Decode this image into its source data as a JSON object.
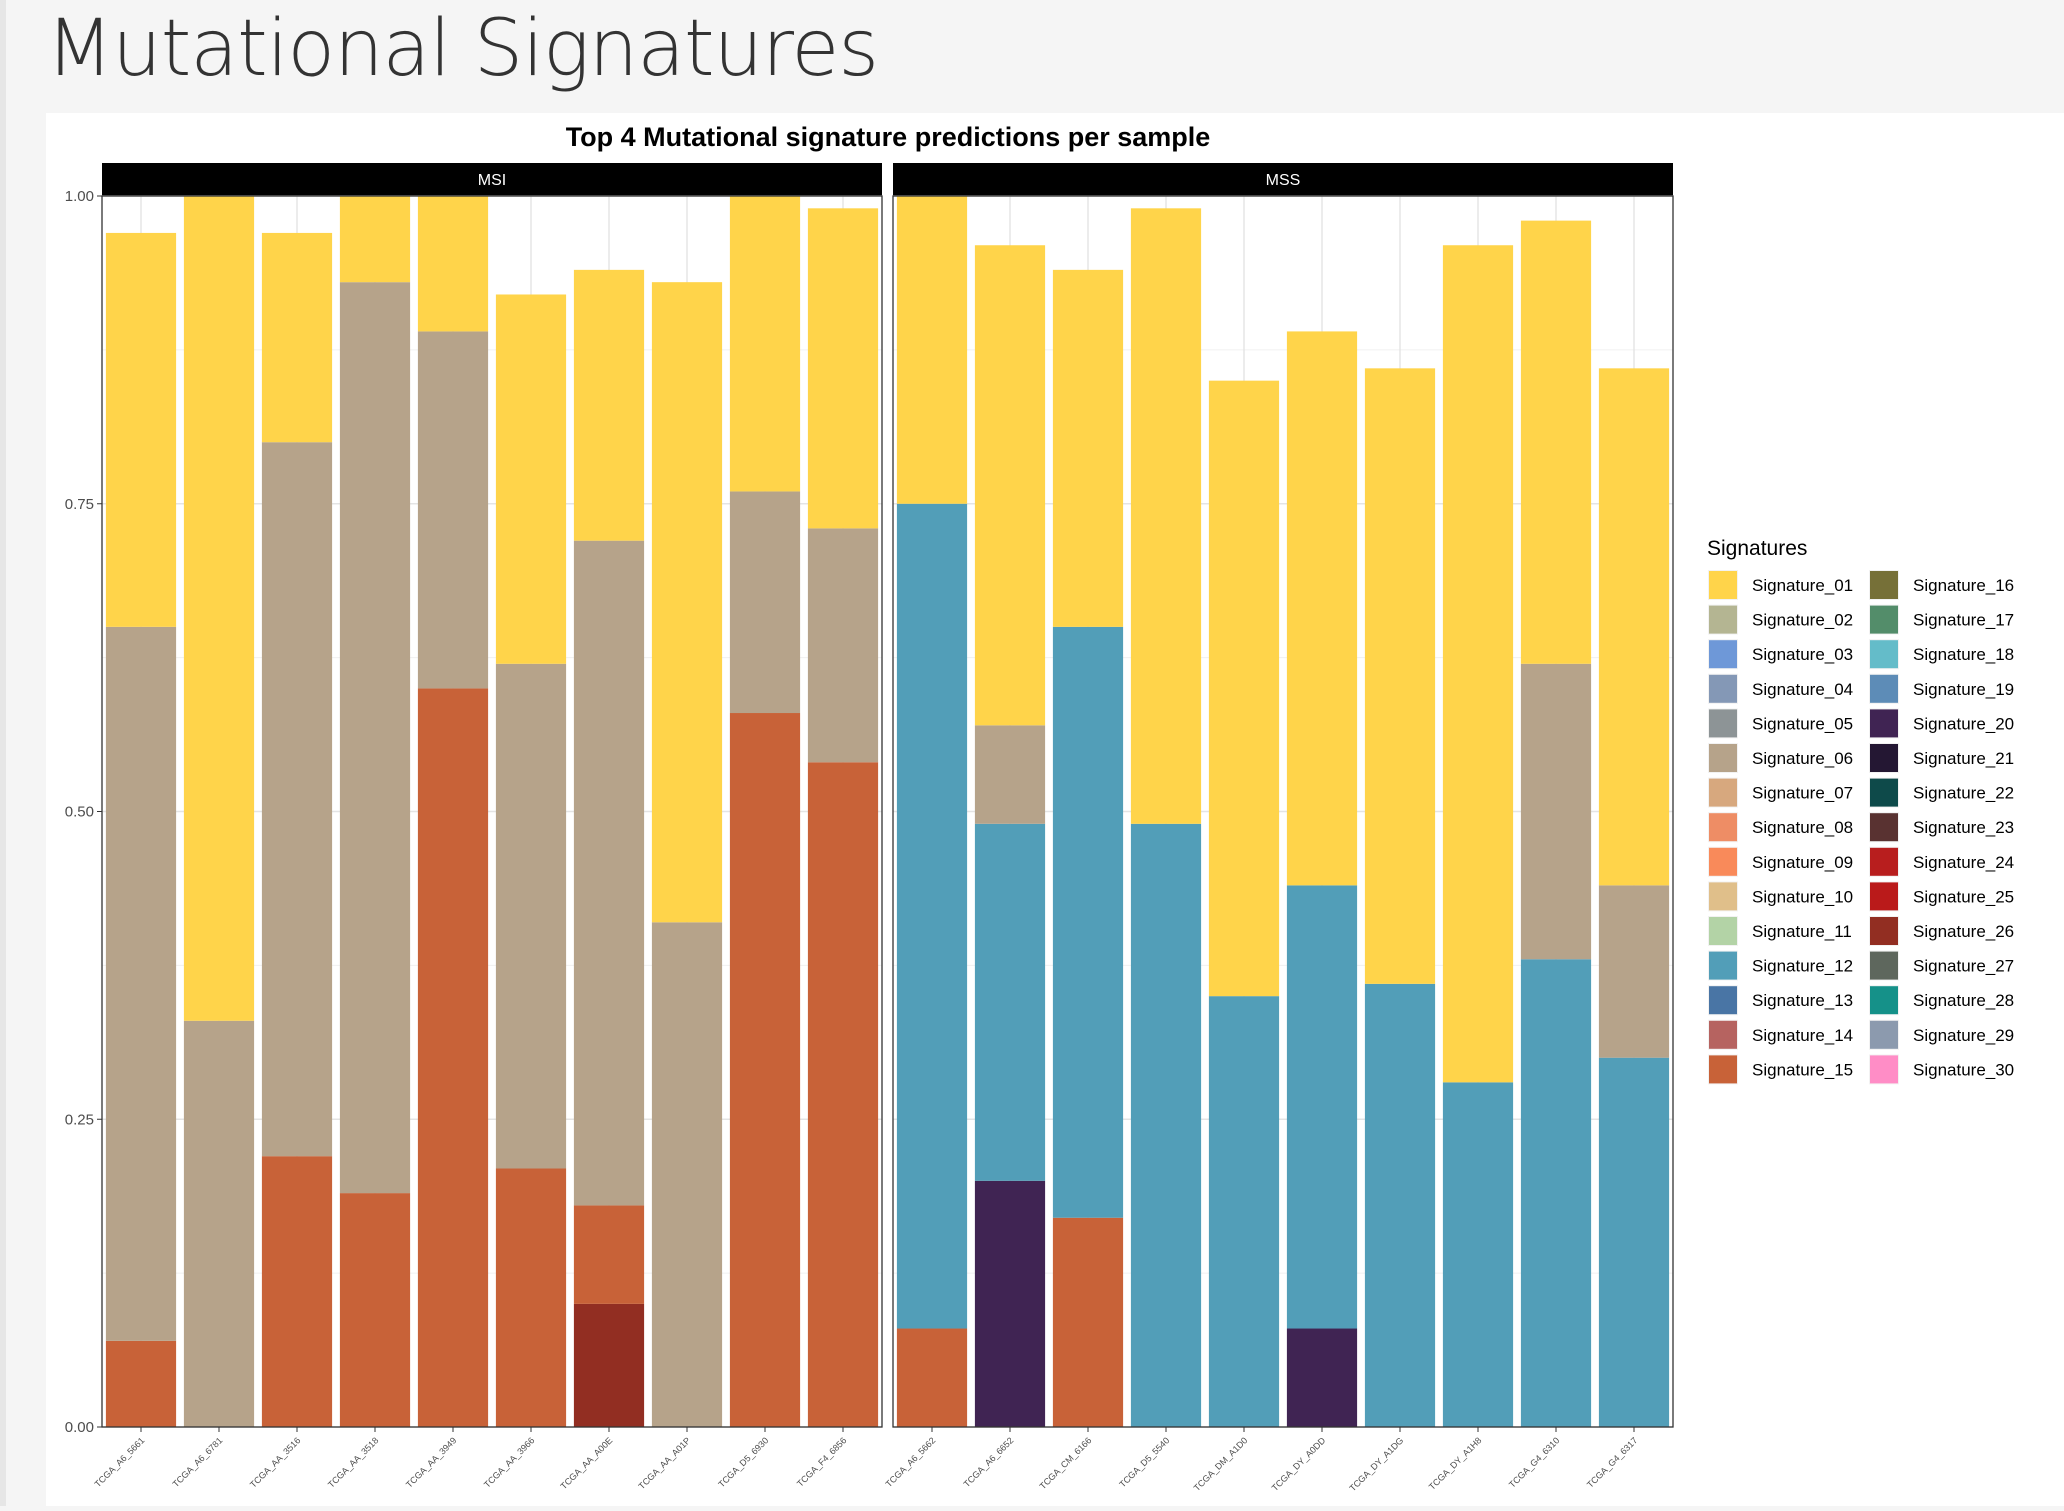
{
  "page": {
    "title": "Mutational Signatures"
  },
  "chart_data": {
    "type": "bar",
    "stacked": true,
    "title": "Top 4 Mutational signature predictions per sample",
    "xlabel": "",
    "ylabel": "",
    "ylim": [
      0,
      1
    ],
    "yticks": [
      "0.00",
      "0.25",
      "0.50",
      "0.75",
      "1.00"
    ],
    "grid": true,
    "legend": {
      "title": "Signatures",
      "position": "right",
      "entries": [
        {
          "name": "Signature_01",
          "color": "#FFD44A"
        },
        {
          "name": "Signature_02",
          "color": "#B4B592"
        },
        {
          "name": "Signature_03",
          "color": "#6E98D8"
        },
        {
          "name": "Signature_04",
          "color": "#8498B6"
        },
        {
          "name": "Signature_05",
          "color": "#8D9496"
        },
        {
          "name": "Signature_06",
          "color": "#B6A38A"
        },
        {
          "name": "Signature_07",
          "color": "#D7A87E"
        },
        {
          "name": "Signature_08",
          "color": "#EE8D65"
        },
        {
          "name": "Signature_09",
          "color": "#F98A5A"
        },
        {
          "name": "Signature_10",
          "color": "#E0BF8A"
        },
        {
          "name": "Signature_11",
          "color": "#B3D3A6"
        },
        {
          "name": "Signature_12",
          "color": "#529EB8"
        },
        {
          "name": "Signature_13",
          "color": "#4975A5"
        },
        {
          "name": "Signature_14",
          "color": "#B66360"
        },
        {
          "name": "Signature_15",
          "color": "#C86238"
        },
        {
          "name": "Signature_16",
          "color": "#767038"
        },
        {
          "name": "Signature_17",
          "color": "#538D6A"
        },
        {
          "name": "Signature_18",
          "color": "#64BCC9"
        },
        {
          "name": "Signature_19",
          "color": "#5D8CB7"
        },
        {
          "name": "Signature_20",
          "color": "#402453"
        },
        {
          "name": "Signature_21",
          "color": "#241733"
        },
        {
          "name": "Signature_22",
          "color": "#0E4A4A"
        },
        {
          "name": "Signature_23",
          "color": "#593231"
        },
        {
          "name": "Signature_24",
          "color": "#B81E1E"
        },
        {
          "name": "Signature_25",
          "color": "#BA1A1A"
        },
        {
          "name": "Signature_26",
          "color": "#922E22"
        },
        {
          "name": "Signature_27",
          "color": "#5E675D"
        },
        {
          "name": "Signature_28",
          "color": "#159189"
        },
        {
          "name": "Signature_29",
          "color": "#8C9AAE"
        },
        {
          "name": "Signature_30",
          "color": "#FF8DC6"
        }
      ]
    },
    "facets": [
      {
        "name": "MSI",
        "samples": [
          {
            "id": "TCGA_A6_5661",
            "stack": [
              {
                "sig": "Signature_15",
                "value": 0.07
              },
              {
                "sig": "Signature_06",
                "value": 0.58
              },
              {
                "sig": "Signature_01",
                "value": 0.32
              }
            ]
          },
          {
            "id": "TCGA_A6_6781",
            "stack": [
              {
                "sig": "Signature_06",
                "value": 0.33
              },
              {
                "sig": "Signature_01",
                "value": 0.67
              }
            ]
          },
          {
            "id": "TCGA_AA_3516",
            "stack": [
              {
                "sig": "Signature_15",
                "value": 0.22
              },
              {
                "sig": "Signature_06",
                "value": 0.58
              },
              {
                "sig": "Signature_01",
                "value": 0.17
              }
            ]
          },
          {
            "id": "TCGA_AA_3518",
            "stack": [
              {
                "sig": "Signature_15",
                "value": 0.19
              },
              {
                "sig": "Signature_06",
                "value": 0.74
              },
              {
                "sig": "Signature_01",
                "value": 0.07
              }
            ]
          },
          {
            "id": "TCGA_AA_3949",
            "stack": [
              {
                "sig": "Signature_15",
                "value": 0.6
              },
              {
                "sig": "Signature_06",
                "value": 0.29
              },
              {
                "sig": "Signature_01",
                "value": 0.11
              }
            ]
          },
          {
            "id": "TCGA_AA_3966",
            "stack": [
              {
                "sig": "Signature_15",
                "value": 0.21
              },
              {
                "sig": "Signature_06",
                "value": 0.41
              },
              {
                "sig": "Signature_01",
                "value": 0.3
              }
            ]
          },
          {
            "id": "TCGA_AA_A00E",
            "stack": [
              {
                "sig": "Signature_26",
                "value": 0.1
              },
              {
                "sig": "Signature_15",
                "value": 0.08
              },
              {
                "sig": "Signature_06",
                "value": 0.54
              },
              {
                "sig": "Signature_01",
                "value": 0.22
              }
            ]
          },
          {
            "id": "TCGA_AA_A01P",
            "stack": [
              {
                "sig": "Signature_06",
                "value": 0.41
              },
              {
                "sig": "Signature_01",
                "value": 0.52
              }
            ]
          },
          {
            "id": "TCGA_D5_6930",
            "stack": [
              {
                "sig": "Signature_15",
                "value": 0.58
              },
              {
                "sig": "Signature_06",
                "value": 0.18
              },
              {
                "sig": "Signature_01",
                "value": 0.24
              }
            ]
          },
          {
            "id": "TCGA_F4_6856",
            "stack": [
              {
                "sig": "Signature_15",
                "value": 0.54
              },
              {
                "sig": "Signature_06",
                "value": 0.19
              },
              {
                "sig": "Signature_01",
                "value": 0.26
              }
            ]
          }
        ]
      },
      {
        "name": "MSS",
        "samples": [
          {
            "id": "TCGA_A6_5662",
            "stack": [
              {
                "sig": "Signature_15",
                "value": 0.08
              },
              {
                "sig": "Signature_12",
                "value": 0.67
              },
              {
                "sig": "Signature_01",
                "value": 0.25
              }
            ]
          },
          {
            "id": "TCGA_A6_6652",
            "stack": [
              {
                "sig": "Signature_20",
                "value": 0.2
              },
              {
                "sig": "Signature_12",
                "value": 0.29
              },
              {
                "sig": "Signature_06",
                "value": 0.08
              },
              {
                "sig": "Signature_01",
                "value": 0.39
              }
            ]
          },
          {
            "id": "TCGA_CM_6166",
            "stack": [
              {
                "sig": "Signature_15",
                "value": 0.17
              },
              {
                "sig": "Signature_12",
                "value": 0.48
              },
              {
                "sig": "Signature_01",
                "value": 0.29
              }
            ]
          },
          {
            "id": "TCGA_D5_5540",
            "stack": [
              {
                "sig": "Signature_12",
                "value": 0.49
              },
              {
                "sig": "Signature_01",
                "value": 0.5
              }
            ]
          },
          {
            "id": "TCGA_DM_A1D0",
            "stack": [
              {
                "sig": "Signature_12",
                "value": 0.35
              },
              {
                "sig": "Signature_01",
                "value": 0.5
              }
            ]
          },
          {
            "id": "TCGA_DY_A0DD",
            "stack": [
              {
                "sig": "Signature_20",
                "value": 0.08
              },
              {
                "sig": "Signature_12",
                "value": 0.36
              },
              {
                "sig": "Signature_01",
                "value": 0.45
              }
            ]
          },
          {
            "id": "TCGA_DY_A1DG",
            "stack": [
              {
                "sig": "Signature_12",
                "value": 0.36
              },
              {
                "sig": "Signature_01",
                "value": 0.5
              }
            ]
          },
          {
            "id": "TCGA_DY_A1H8",
            "stack": [
              {
                "sig": "Signature_12",
                "value": 0.28
              },
              {
                "sig": "Signature_01",
                "value": 0.68
              }
            ]
          },
          {
            "id": "TCGA_G4_6310",
            "stack": [
              {
                "sig": "Signature_12",
                "value": 0.38
              },
              {
                "sig": "Signature_06",
                "value": 0.24
              },
              {
                "sig": "Signature_01",
                "value": 0.36
              }
            ]
          },
          {
            "id": "TCGA_G4_6317",
            "stack": [
              {
                "sig": "Signature_12",
                "value": 0.3
              },
              {
                "sig": "Signature_06",
                "value": 0.14
              },
              {
                "sig": "Signature_01",
                "value": 0.42
              }
            ]
          }
        ]
      }
    ]
  }
}
